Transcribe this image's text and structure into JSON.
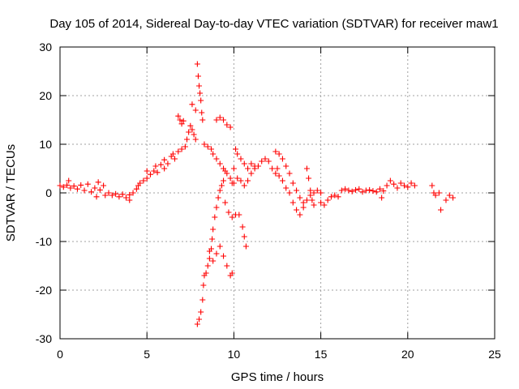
{
  "chart_data": {
    "type": "scatter",
    "title": "Day 105 of 2014, Sidereal Day-to-day VTEC variation (SDTVAR) for receiver maw1",
    "xlabel": "GPS time / hours",
    "ylabel": "SDTVAR / TECUs",
    "xlim": [
      0,
      25
    ],
    "ylim": [
      -30,
      30
    ],
    "xticks": [
      0,
      5,
      10,
      15,
      20,
      25
    ],
    "yticks": [
      -30,
      -20,
      -10,
      0,
      10,
      20,
      30
    ],
    "grid": true,
    "marker": "+",
    "color": "#ff0000",
    "series": [
      {
        "name": "maw1",
        "points": [
          [
            0.0,
            1.5
          ],
          [
            0.2,
            1.2
          ],
          [
            0.4,
            1.6
          ],
          [
            0.5,
            2.5
          ],
          [
            0.6,
            1.0
          ],
          [
            0.8,
            1.4
          ],
          [
            1.0,
            0.8
          ],
          [
            1.2,
            1.6
          ],
          [
            1.4,
            0.5
          ],
          [
            1.6,
            1.8
          ],
          [
            1.8,
            0.2
          ],
          [
            2.0,
            1.0
          ],
          [
            2.1,
            -0.8
          ],
          [
            2.2,
            2.2
          ],
          [
            2.3,
            0.6
          ],
          [
            2.5,
            1.5
          ],
          [
            2.6,
            -0.5
          ],
          [
            2.8,
            0.0
          ],
          [
            3.0,
            -0.5
          ],
          [
            3.2,
            -0.2
          ],
          [
            3.4,
            -0.8
          ],
          [
            3.6,
            -0.3
          ],
          [
            3.8,
            -1.0
          ],
          [
            4.0,
            -1.5
          ],
          [
            4.0,
            -0.4
          ],
          [
            4.2,
            0.0
          ],
          [
            4.4,
            0.8
          ],
          [
            4.5,
            1.5
          ],
          [
            4.6,
            2.0
          ],
          [
            4.8,
            2.5
          ],
          [
            5.0,
            3.0
          ],
          [
            5.0,
            4.5
          ],
          [
            5.2,
            3.8
          ],
          [
            5.4,
            4.5
          ],
          [
            5.5,
            5.5
          ],
          [
            5.6,
            4.2
          ],
          [
            5.8,
            5.8
          ],
          [
            6.0,
            5.0
          ],
          [
            6.0,
            6.8
          ],
          [
            6.2,
            6.0
          ],
          [
            6.4,
            7.5
          ],
          [
            6.5,
            8.0
          ],
          [
            6.6,
            7.0
          ],
          [
            6.8,
            8.5
          ],
          [
            7.0,
            9.0
          ],
          [
            7.2,
            9.5
          ],
          [
            7.3,
            11.0
          ],
          [
            7.4,
            12.5
          ],
          [
            7.5,
            13.8
          ],
          [
            7.6,
            13.0
          ],
          [
            7.7,
            12.0
          ],
          [
            7.8,
            11.0
          ],
          [
            6.8,
            15.8
          ],
          [
            6.9,
            15.0
          ],
          [
            7.0,
            14.2
          ],
          [
            7.1,
            14.8
          ],
          [
            7.6,
            18.2
          ],
          [
            7.8,
            17.0
          ],
          [
            7.9,
            26.5
          ],
          [
            7.95,
            24.0
          ],
          [
            8.0,
            22.0
          ],
          [
            8.05,
            20.5
          ],
          [
            8.1,
            19.0
          ],
          [
            8.15,
            16.5
          ],
          [
            8.2,
            15.0
          ],
          [
            8.3,
            10.0
          ],
          [
            8.5,
            9.5
          ],
          [
            8.7,
            9.0
          ],
          [
            8.8,
            8.0
          ],
          [
            9.0,
            7.0
          ],
          [
            9.2,
            6.0
          ],
          [
            9.4,
            5.0
          ],
          [
            9.5,
            4.5
          ],
          [
            9.6,
            4.0
          ],
          [
            9.8,
            3.0
          ],
          [
            10.0,
            2.0
          ],
          [
            10.2,
            3.0
          ],
          [
            10.4,
            2.5
          ],
          [
            10.6,
            1.5
          ],
          [
            10.8,
            2.5
          ],
          [
            11.0,
            4.0
          ],
          [
            11.2,
            5.0
          ],
          [
            11.4,
            5.5
          ],
          [
            11.6,
            6.5
          ],
          [
            11.8,
            7.0
          ],
          [
            12.0,
            6.5
          ],
          [
            12.2,
            5.0
          ],
          [
            12.4,
            4.0
          ],
          [
            12.5,
            5.0
          ],
          [
            12.6,
            3.5
          ],
          [
            12.8,
            2.5
          ],
          [
            13.0,
            1.0
          ],
          [
            13.2,
            0.0
          ],
          [
            13.4,
            -2.0
          ],
          [
            13.6,
            -3.5
          ],
          [
            13.8,
            -4.5
          ],
          [
            14.0,
            -3.0
          ],
          [
            14.2,
            -1.5
          ],
          [
            14.4,
            -0.5
          ],
          [
            14.6,
            0.0
          ],
          [
            14.8,
            0.5
          ],
          [
            15.0,
            0.0
          ],
          [
            9.0,
            15.0
          ],
          [
            9.2,
            15.5
          ],
          [
            9.4,
            15.0
          ],
          [
            9.6,
            14.0
          ],
          [
            9.8,
            13.5
          ],
          [
            9.9,
            2.0
          ],
          [
            10.0,
            5.0
          ],
          [
            10.1,
            9.0
          ],
          [
            10.2,
            8.0
          ],
          [
            10.4,
            7.0
          ],
          [
            10.6,
            6.0
          ],
          [
            10.8,
            5.0
          ],
          [
            11.0,
            6.0
          ],
          [
            11.2,
            5.5
          ],
          [
            12.4,
            8.5
          ],
          [
            12.6,
            8.0
          ],
          [
            12.8,
            7.0
          ],
          [
            13.0,
            5.5
          ],
          [
            13.2,
            4.0
          ],
          [
            13.4,
            2.0
          ],
          [
            13.6,
            0.5
          ],
          [
            13.8,
            -1.0
          ],
          [
            14.0,
            -2.0
          ],
          [
            14.2,
            5.0
          ],
          [
            14.3,
            3.0
          ],
          [
            14.4,
            0.5
          ],
          [
            14.5,
            -1.5
          ],
          [
            14.6,
            -2.5
          ],
          [
            15.0,
            -2.0
          ],
          [
            15.2,
            -2.5
          ],
          [
            15.4,
            -1.5
          ],
          [
            15.6,
            -0.8
          ],
          [
            15.8,
            -0.5
          ],
          [
            16.0,
            -0.8
          ],
          [
            16.2,
            0.5
          ],
          [
            16.4,
            0.8
          ],
          [
            16.6,
            0.5
          ],
          [
            16.8,
            0.3
          ],
          [
            17.0,
            0.6
          ],
          [
            17.2,
            0.8
          ],
          [
            17.4,
            0.2
          ],
          [
            17.6,
            0.5
          ],
          [
            17.8,
            0.6
          ],
          [
            18.0,
            0.4
          ],
          [
            18.2,
            0.2
          ],
          [
            18.4,
            0.8
          ],
          [
            18.5,
            -1.0
          ],
          [
            18.6,
            0.4
          ],
          [
            18.8,
            1.5
          ],
          [
            19.0,
            2.5
          ],
          [
            19.2,
            1.8
          ],
          [
            19.4,
            1.0
          ],
          [
            19.6,
            2.0
          ],
          [
            19.8,
            1.5
          ],
          [
            20.0,
            1.2
          ],
          [
            20.2,
            2.0
          ],
          [
            20.4,
            1.5
          ],
          [
            21.4,
            1.5
          ],
          [
            21.5,
            0.0
          ],
          [
            21.6,
            -0.5
          ],
          [
            21.8,
            0.0
          ],
          [
            21.9,
            -3.5
          ],
          [
            22.2,
            -1.5
          ],
          [
            22.4,
            -0.5
          ],
          [
            22.6,
            -1.0
          ],
          [
            7.9,
            -27.0
          ],
          [
            8.0,
            -26.0
          ],
          [
            8.1,
            -24.5
          ],
          [
            8.2,
            -22.0
          ],
          [
            8.25,
            -19.0
          ],
          [
            8.3,
            -17.0
          ],
          [
            8.4,
            -16.5
          ],
          [
            8.5,
            -15.0
          ],
          [
            8.6,
            -13.5
          ],
          [
            8.7,
            -11.5
          ],
          [
            8.75,
            -9.5
          ],
          [
            8.8,
            -7.5
          ],
          [
            8.9,
            -5.0
          ],
          [
            9.0,
            -3.0
          ],
          [
            9.1,
            -1.0
          ],
          [
            9.2,
            0.5
          ],
          [
            9.3,
            1.5
          ],
          [
            9.4,
            2.5
          ],
          [
            8.6,
            -12.0
          ],
          [
            8.8,
            -14.0
          ],
          [
            9.0,
            -12.5
          ],
          [
            9.2,
            -11.0
          ],
          [
            9.4,
            -13.0
          ],
          [
            9.6,
            -15.0
          ],
          [
            9.8,
            -17.0
          ],
          [
            9.9,
            -16.5
          ],
          [
            9.5,
            -2.0
          ],
          [
            9.7,
            -4.0
          ],
          [
            9.9,
            -5.0
          ],
          [
            10.1,
            -4.5
          ],
          [
            10.3,
            -4.5
          ],
          [
            10.5,
            -7.0
          ],
          [
            10.6,
            -9.0
          ],
          [
            10.7,
            -11.0
          ]
        ]
      }
    ]
  }
}
